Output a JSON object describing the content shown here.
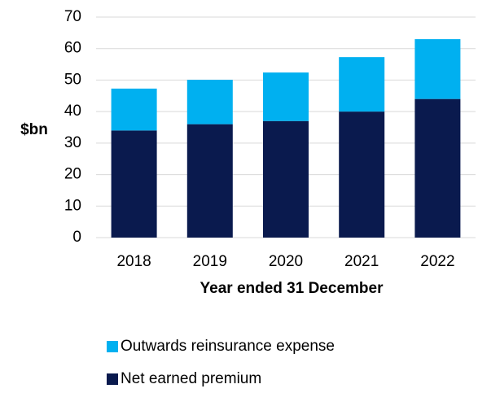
{
  "chart_data": {
    "type": "stacked-bar",
    "y_label": "$bn",
    "x_label": "Year ended 31 December",
    "categories": [
      "2018",
      "2019",
      "2020",
      "2021",
      "2022"
    ],
    "series": [
      {
        "name": "Net earned premium",
        "color": "#0a1a4e",
        "values": [
          34,
          36,
          37,
          40,
          44
        ]
      },
      {
        "name": "Outwards reinsurance expense",
        "color": "#00b0f0",
        "values": [
          13.3,
          14.1,
          15.4,
          17.3,
          19
        ]
      }
    ],
    "ylim": [
      0,
      70
    ],
    "yticks": [
      0,
      10,
      20,
      30,
      40,
      50,
      60,
      70
    ],
    "grid": true,
    "legend": "bottom"
  }
}
